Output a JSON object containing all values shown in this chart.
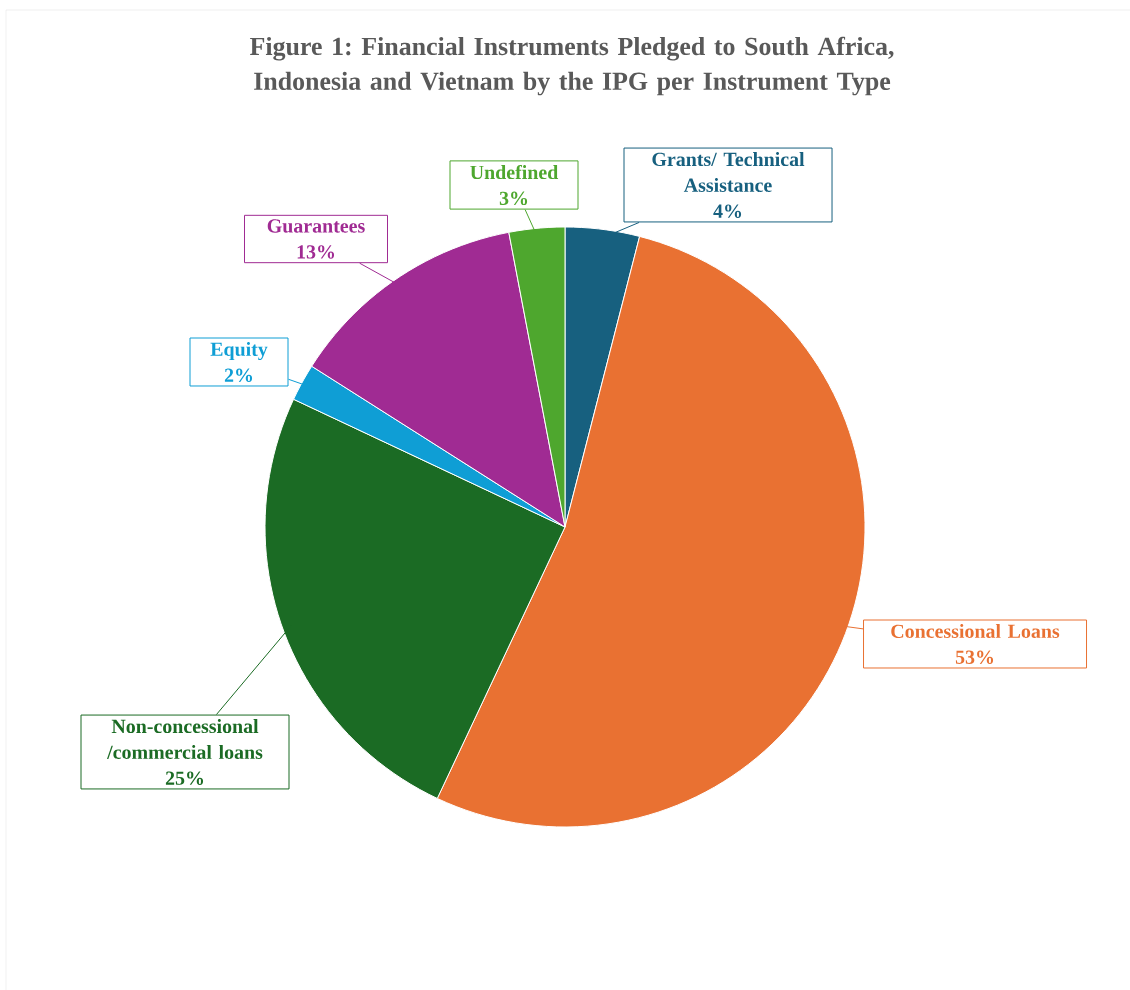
{
  "chart_data": {
    "type": "pie",
    "title": "Figure 1: Financial Instruments Pledged to South Africa, Indonesia and Vietnam by the IPG per Instrument Type",
    "categories": [
      "Grants/ Technical Assistance",
      "Concessional Loans",
      "Non-concessional /commercial loans",
      "Equity",
      "Guarantees",
      "Undefined"
    ],
    "values": [
      4,
      53,
      25,
      2,
      13,
      3
    ],
    "value_labels": [
      "4%",
      "53%",
      "25%",
      "2%",
      "13%",
      "3%"
    ],
    "colors": [
      "#17607f",
      "#e97132",
      "#1b6b24",
      "#0f9ed5",
      "#a02b93",
      "#4ea72e"
    ]
  }
}
